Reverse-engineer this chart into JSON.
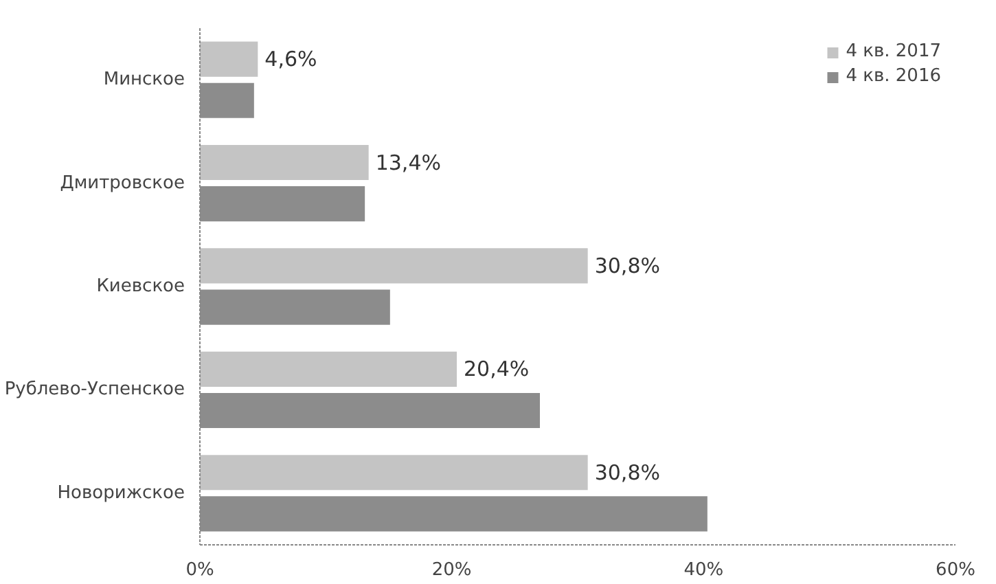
{
  "chart_data": {
    "type": "bar",
    "orientation": "horizontal",
    "categories": [
      "Минское",
      "Дмитровское",
      "Киевское",
      "Рублево-Успенское",
      "Новорижское"
    ],
    "series": [
      {
        "name": "4 кв. 2017",
        "color": "#c4c4c4",
        "values": [
          4.6,
          13.4,
          30.8,
          20.4,
          30.8
        ],
        "value_labels": [
          "4,6%",
          "13,4%",
          "30,8%",
          "20,4%",
          "30,8%"
        ]
      },
      {
        "name": "4 кв. 2016",
        "color": "#8c8c8c",
        "values": [
          4.3,
          13.1,
          15.1,
          27.0,
          40.3
        ]
      }
    ],
    "xlim": [
      0,
      60
    ],
    "xticks": [
      {
        "value": 0,
        "label": "0%"
      },
      {
        "value": 20,
        "label": "20%"
      },
      {
        "value": 40,
        "label": "40%"
      },
      {
        "value": 60,
        "label": "60%"
      }
    ],
    "grid": false,
    "legend": "top right"
  }
}
